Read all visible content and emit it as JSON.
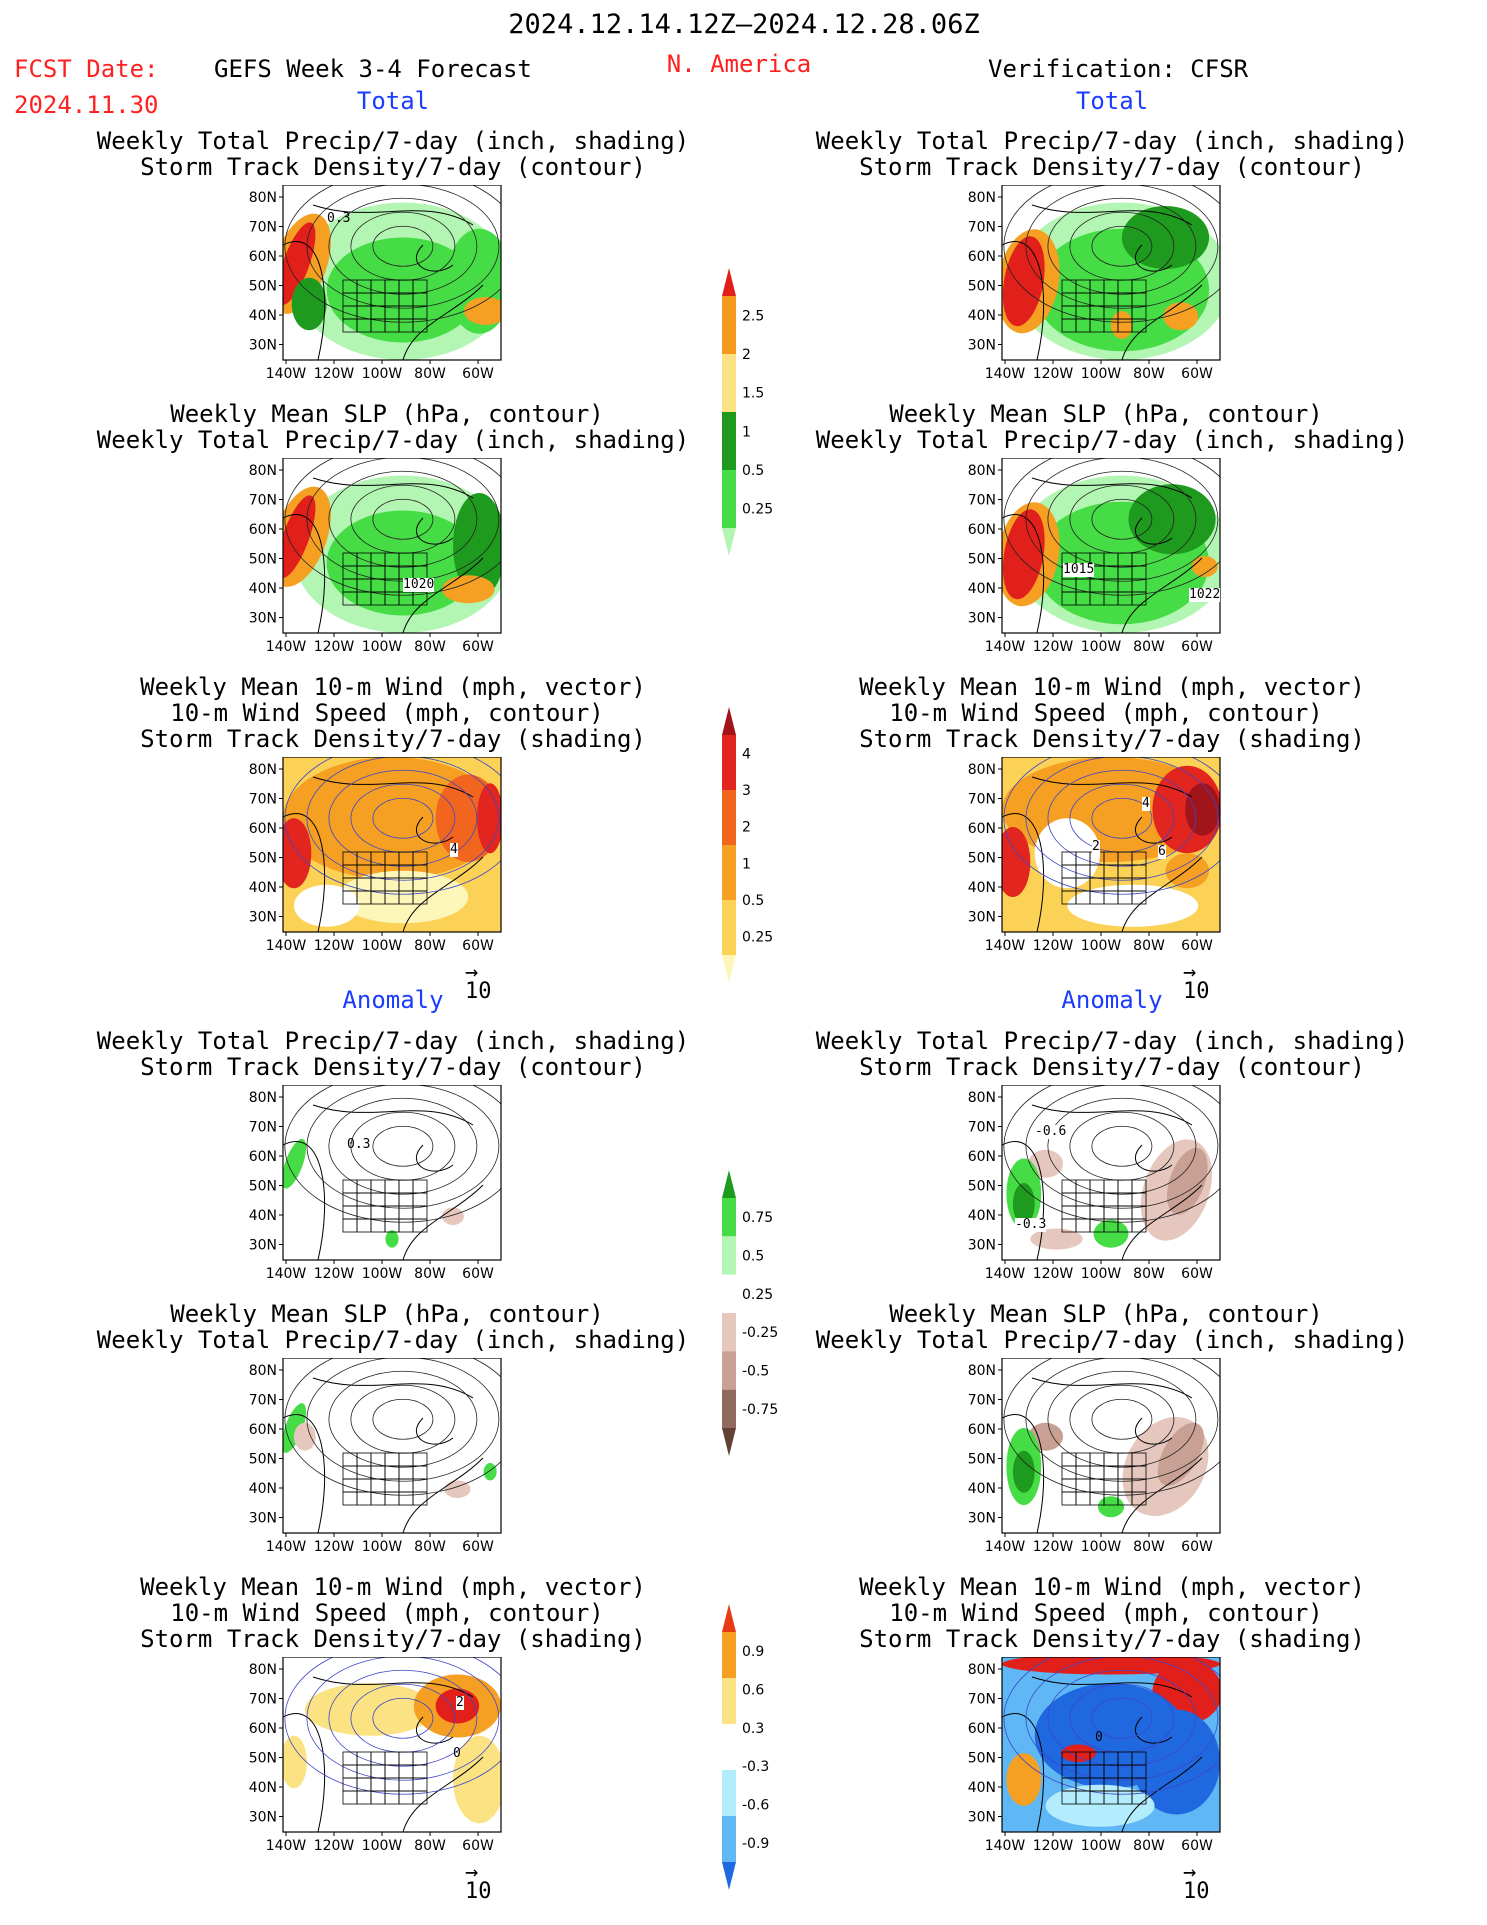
{
  "header": {
    "date_range": "2024.12.14.12Z—2024.12.28.06Z",
    "region": "N. America",
    "fcst_label": "FCST Date:",
    "fcst_date": "2024.11.30",
    "model": "GEFS Week 3-4 Forecast",
    "verification": "Verification: CFSR"
  },
  "sections": {
    "total": "Total",
    "anomaly": "Anomaly"
  },
  "panel_titles": {
    "precip_storm": [
      "Weekly Total Precip/7-day (inch, shading)",
      "Storm Track Density/7-day (contour)"
    ],
    "slp_precip": [
      "Weekly Mean SLP (hPa, contour)",
      "Weekly Total Precip/7-day (inch, shading)"
    ],
    "wind_storm": [
      "Weekly Mean 10-m Wind (mph, vector)",
      "10-m Wind Speed (mph, contour)",
      "Storm Track Density/7-day (shading)"
    ]
  },
  "axes": {
    "lat_ticks": [
      "80N",
      "70N",
      "60N",
      "50N",
      "40N",
      "30N"
    ],
    "lon_ticks": [
      "140W",
      "120W",
      "100W",
      "80W",
      "60W"
    ]
  },
  "vector_ref": "10",
  "contour_labels": {
    "fcst_total_precip": "0.3",
    "fcst_total_slp": "1020",
    "obs_total_slp_left": "1015",
    "obs_total_slp_right": "1022",
    "fcst_total_wind": "4",
    "obs_total_wind_a": "2",
    "obs_total_wind_b": "4",
    "obs_total_wind_c": "6",
    "fcst_anom_precip": "0.3",
    "obs_anom_precip_a": "-0.6",
    "obs_anom_precip_b": "-0.3",
    "fcst_anom_wind_a": "2",
    "fcst_anom_wind_b": "0",
    "obs_anom_wind": "0"
  },
  "colorbars": {
    "total_precip": {
      "labels": [
        "2.5",
        "2",
        "1.5",
        "1",
        "0.5",
        "0.25"
      ],
      "colors": [
        "#e2201b",
        "#f59a1f",
        "#fbe283",
        "#1e9a1e",
        "#46dc46",
        "#b3f5b3"
      ]
    },
    "total_storm": {
      "labels": [
        "4",
        "3",
        "2",
        "1",
        "0.5",
        "0.25"
      ],
      "colors": [
        "#a0141a",
        "#e32520",
        "#f2651e",
        "#f5a023",
        "#fbd255",
        "#fdf6b9"
      ]
    },
    "anom_precip": {
      "labels": [
        "0.75",
        "0.5",
        "0.25",
        "-0.25",
        "-0.5",
        "-0.75"
      ],
      "colors": [
        "#1e9a1e",
        "#46dc46",
        "#b3f5b3",
        "#ffffff",
        "#e5c7bd",
        "#c8a094",
        "#906a5e",
        "#634034"
      ]
    },
    "anom_storm": {
      "labels": [
        "0.9",
        "0.6",
        "0.3",
        "-0.3",
        "-0.6",
        "-0.9"
      ],
      "colors": [
        "#e73a17",
        "#f5a023",
        "#fbe283",
        "#ffffff",
        "#b3ecfc",
        "#5fb8f5",
        "#2068e0"
      ]
    }
  }
}
